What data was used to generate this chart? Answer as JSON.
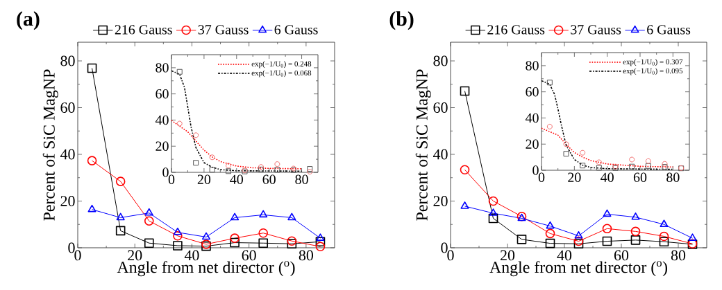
{
  "chart_data": [
    {
      "type": "line",
      "title": "(a)",
      "xlabel": "Angle from net director ($^{o}$)",
      "ylabel": "Percent of SiC MagNP",
      "x": [
        5,
        15,
        25,
        35,
        45,
        55,
        65,
        75,
        85
      ],
      "xlim": [
        0,
        90
      ],
      "ylim": [
        0,
        88
      ],
      "xticks": [
        0,
        20,
        40,
        60,
        80
      ],
      "yticks": [
        0,
        20,
        40,
        60,
        80
      ],
      "legend": "top",
      "series": [
        {
          "name": "216 Gauss",
          "color": "#000000",
          "marker": "square",
          "values": [
            76.9,
            7.3,
            2.0,
            0.9,
            0.7,
            2.2,
            2.0,
            1.7,
            2.6
          ]
        },
        {
          "name": "37 Gauss",
          "color": "#ff0000",
          "marker": "circle",
          "values": [
            37.3,
            28.4,
            11.5,
            5.1,
            1.5,
            4.1,
            6.3,
            2.9,
            0.5
          ]
        },
        {
          "name": "6 Gauss",
          "color": "#0000ff",
          "marker": "triangle",
          "values": [
            16.4,
            12.9,
            14.9,
            6.6,
            4.6,
            12.9,
            14.1,
            12.9,
            4.1
          ]
        }
      ]
    },
    {
      "type": "line",
      "x": [
        5,
        15,
        25,
        35,
        45,
        55,
        65,
        75,
        85
      ],
      "xlim": [
        0,
        90
      ],
      "ylim": [
        0,
        90
      ],
      "xticks": [
        0,
        20,
        40,
        60,
        80
      ],
      "yticks": [
        0,
        20,
        40,
        60,
        80
      ],
      "legend": "top right",
      "series": [
        {
          "type": "scatter",
          "color": "#555555",
          "marker": "square",
          "values": [
            76.9,
            7.3,
            2.0,
            0.9,
            0.7,
            2.2,
            2.0,
            1.7,
            2.6
          ]
        },
        {
          "type": "scatter",
          "color": "#f26d6d",
          "marker": "circle",
          "values": [
            37.3,
            28.4,
            11.5,
            5.1,
            1.5,
            4.1,
            6.3,
            2.9,
            0.5
          ]
        },
        {
          "name": "exp(−1/U$_{0}$) = 0.248",
          "color": "#ff0000",
          "line_style": "dotted",
          "x": [
            0,
            10,
            15,
            20,
            25,
            30,
            40,
            50,
            60,
            80
          ],
          "values": [
            39.7,
            31,
            24,
            17,
            11.8,
            8.3,
            4.8,
            3.5,
            3,
            2.7
          ]
        },
        {
          "name": "exp(−1/U$_{0}$) = 0.068",
          "color": "#000000",
          "line_style": "dashdot",
          "x": [
            0,
            5,
            8,
            10,
            12,
            15,
            20,
            25,
            30,
            40,
            80
          ],
          "values": [
            77.7,
            75,
            65,
            50,
            35,
            19,
            7.4,
            3.9,
            2.1,
            1.2,
            0.9
          ]
        }
      ]
    },
    {
      "type": "line",
      "title": "(b)",
      "xlabel": "Angle from net director ($^{o}$)",
      "ylabel": "Percent of SiC MagNP",
      "x": [
        5,
        15,
        25,
        35,
        45,
        55,
        65,
        75,
        85
      ],
      "xlim": [
        0,
        90
      ],
      "ylim": [
        0,
        88
      ],
      "xticks": [
        0,
        20,
        40,
        60,
        80
      ],
      "yticks": [
        0,
        20,
        40,
        60,
        80
      ],
      "legend": "top",
      "series": [
        {
          "name": "216 Gauss",
          "color": "#000000",
          "marker": "square",
          "values": [
            67.1,
            12.6,
            3.6,
            1.9,
            1.7,
            2.8,
            3.3,
            2.6,
            1.5
          ]
        },
        {
          "name": "37 Gauss",
          "color": "#ff0000",
          "marker": "circle",
          "values": [
            33.4,
            20.0,
            13.4,
            6.1,
            2.8,
            8.2,
            7.0,
            4.9,
            1.7
          ]
        },
        {
          "name": "6 Gauss",
          "color": "#0000ff",
          "marker": "triangle",
          "values": [
            17.8,
            14.8,
            12.6,
            9.3,
            5.1,
            14.4,
            13.1,
            10.0,
            4.1
          ]
        }
      ]
    },
    {
      "type": "line",
      "x": [
        5,
        15,
        25,
        35,
        45,
        55,
        65,
        75,
        85
      ],
      "xlim": [
        0,
        90
      ],
      "ylim": [
        0,
        90
      ],
      "xticks": [
        0,
        20,
        40,
        60,
        80
      ],
      "yticks": [
        0,
        20,
        40,
        60,
        80
      ],
      "legend": "top right",
      "series": [
        {
          "type": "scatter",
          "color": "#555555",
          "marker": "square",
          "values": [
            67.1,
            12.6,
            3.6,
            1.9,
            1.7,
            2.8,
            3.3,
            2.6,
            1.5
          ]
        },
        {
          "type": "scatter",
          "color": "#f26d6d",
          "marker": "circle",
          "values": [
            33.4,
            20.0,
            13.4,
            6.1,
            2.8,
            8.2,
            7.0,
            4.9,
            1.7
          ]
        },
        {
          "name": "exp(−1/U$_{0}$) = 0.307",
          "color": "#ff0000",
          "line_style": "dotted",
          "x": [
            0,
            10,
            15,
            20,
            25,
            30,
            40,
            60,
            80
          ],
          "values": [
            32.2,
            26.9,
            19.8,
            13.6,
            10,
            7.4,
            4.8,
            3,
            2.5
          ]
        },
        {
          "name": "exp(−1/U$_{0}$) = 0.095",
          "color": "#000000",
          "line_style": "dashdot",
          "x": [
            0,
            5,
            8,
            10,
            12,
            15,
            20,
            25,
            30,
            40,
            80
          ],
          "values": [
            68.5,
            65.8,
            57.9,
            47,
            35,
            19,
            8.3,
            3.9,
            2.1,
            1.2,
            0.7
          ]
        }
      ]
    }
  ]
}
